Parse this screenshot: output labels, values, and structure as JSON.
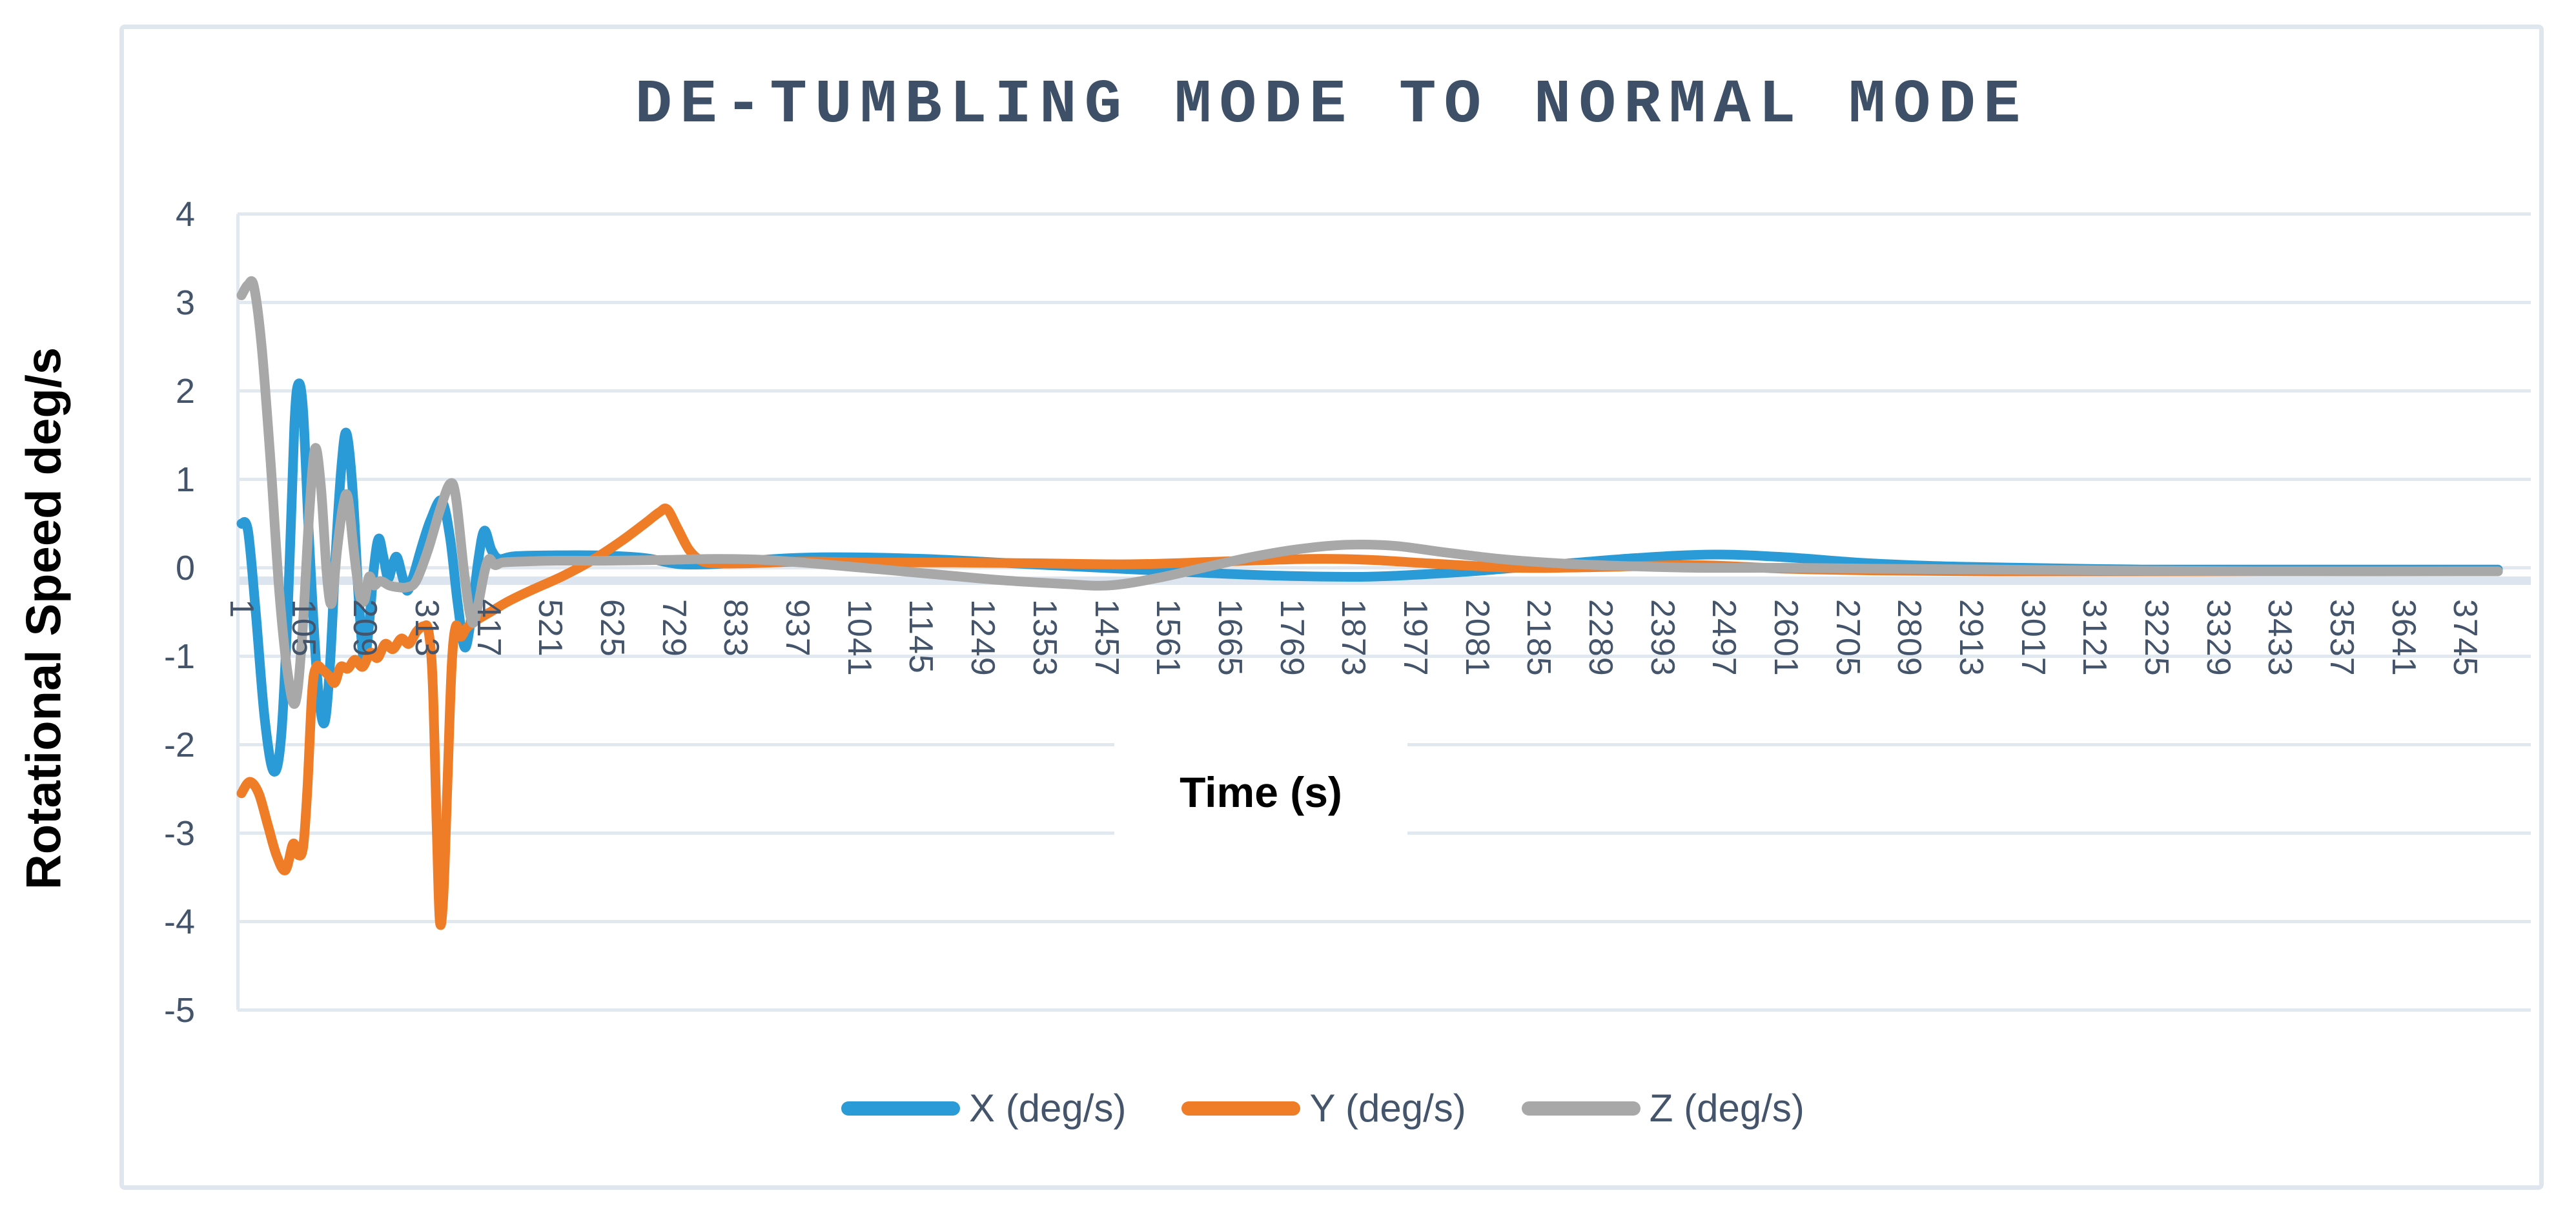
{
  "colors": {
    "background": "#ffffff",
    "frame_border": "#dfe6ee",
    "gridline": "#e2e8f0",
    "zero_axis_band": "#dce4ef",
    "axis_text": "#44546a",
    "title_text": "#3e5067",
    "axis_title_text": "#000000",
    "series_x_blue": "#2b9bd7",
    "series_y_orange": "#ef7d28",
    "series_z_gray": "#a8a8a8"
  },
  "chart_data": {
    "type": "line",
    "title": "DE-TUMBLING MODE TO NORMAL MODE",
    "xlabel": "Time (s)",
    "ylabel": "Rotational Speed deg/s",
    "ylim": [
      -5,
      4
    ],
    "ytick_step": 1,
    "y_tick_labels": [
      "4",
      "3",
      "2",
      "1",
      "0",
      "-1",
      "-2",
      "-3",
      "-4",
      "-5"
    ],
    "x_tick_labels": [
      "1",
      "105",
      "209",
      "313",
      "417",
      "521",
      "625",
      "729",
      "833",
      "937",
      "1041",
      "1145",
      "1249",
      "1353",
      "1457",
      "1561",
      "1665",
      "1769",
      "1873",
      "1977",
      "2081",
      "2185",
      "2289",
      "2393",
      "2497",
      "2601",
      "2705",
      "2809",
      "2913",
      "3017",
      "3121",
      "3225",
      "3329",
      "3433",
      "3537",
      "3641",
      "3745"
    ],
    "x_tick_start": 1,
    "x_tick_interval": 104,
    "x_range": [
      1,
      3834
    ],
    "grid": "horizontal",
    "legend_position": "bottom",
    "series": [
      {
        "name": "X (deg/s)",
        "color": "#2b9bd7",
        "points": [
          [
            1,
            0.5
          ],
          [
            12,
            0.42
          ],
          [
            25,
            -0.5
          ],
          [
            40,
            -1.7
          ],
          [
            55,
            -2.3
          ],
          [
            68,
            -1.9
          ],
          [
            80,
            -0.3
          ],
          [
            90,
            1.6
          ],
          [
            97,
            2.08
          ],
          [
            105,
            1.75
          ],
          [
            115,
            0.3
          ],
          [
            128,
            -1.2
          ],
          [
            140,
            -1.76
          ],
          [
            150,
            -1.1
          ],
          [
            160,
            0.2
          ],
          [
            170,
            1.2
          ],
          [
            178,
            1.52
          ],
          [
            188,
            0.9
          ],
          [
            198,
            -0.3
          ],
          [
            207,
            -1.05
          ],
          [
            215,
            -0.7
          ],
          [
            224,
            0.0
          ],
          [
            232,
            0.33
          ],
          [
            240,
            0.12
          ],
          [
            248,
            -0.12
          ],
          [
            256,
            0.05
          ],
          [
            263,
            0.12
          ],
          [
            272,
            -0.1
          ],
          [
            280,
            -0.26
          ],
          [
            290,
            -0.1
          ],
          [
            305,
            0.25
          ],
          [
            320,
            0.55
          ],
          [
            338,
            0.76
          ],
          [
            352,
            0.35
          ],
          [
            365,
            -0.4
          ],
          [
            377,
            -0.9
          ],
          [
            388,
            -0.55
          ],
          [
            400,
            0.1
          ],
          [
            410,
            0.42
          ],
          [
            422,
            0.2
          ],
          [
            435,
            0.1
          ],
          [
            460,
            0.13
          ],
          [
            520,
            0.14
          ],
          [
            600,
            0.14
          ],
          [
            680,
            0.11
          ],
          [
            740,
            0.04
          ],
          [
            820,
            0.05
          ],
          [
            900,
            0.1
          ],
          [
            1000,
            0.12
          ],
          [
            1150,
            0.1
          ],
          [
            1300,
            0.05
          ],
          [
            1450,
            0.0
          ],
          [
            1600,
            -0.05
          ],
          [
            1750,
            -0.09
          ],
          [
            1900,
            -0.1
          ],
          [
            2050,
            -0.05
          ],
          [
            2200,
            0.03
          ],
          [
            2350,
            0.11
          ],
          [
            2480,
            0.15
          ],
          [
            2600,
            0.12
          ],
          [
            2720,
            0.06
          ],
          [
            2850,
            0.02
          ],
          [
            3000,
            0.0
          ],
          [
            3200,
            -0.02
          ],
          [
            3400,
            -0.02
          ],
          [
            3600,
            -0.02
          ],
          [
            3800,
            -0.02
          ]
        ]
      },
      {
        "name": "Y (deg/s)",
        "color": "#ef7d28",
        "points": [
          [
            1,
            -2.55
          ],
          [
            15,
            -2.42
          ],
          [
            30,
            -2.55
          ],
          [
            45,
            -2.9
          ],
          [
            60,
            -3.25
          ],
          [
            75,
            -3.42
          ],
          [
            88,
            -3.12
          ],
          [
            97,
            -3.25
          ],
          [
            105,
            -3.15
          ],
          [
            112,
            -2.5
          ],
          [
            120,
            -1.4
          ],
          [
            127,
            -1.12
          ],
          [
            137,
            -1.15
          ],
          [
            148,
            -1.22
          ],
          [
            158,
            -1.3
          ],
          [
            168,
            -1.12
          ],
          [
            180,
            -1.14
          ],
          [
            192,
            -1.04
          ],
          [
            205,
            -1.12
          ],
          [
            218,
            -0.96
          ],
          [
            230,
            -1.02
          ],
          [
            243,
            -0.86
          ],
          [
            256,
            -0.92
          ],
          [
            270,
            -0.8
          ],
          [
            283,
            -0.86
          ],
          [
            296,
            -0.72
          ],
          [
            308,
            -0.66
          ],
          [
            316,
            -0.72
          ],
          [
            323,
            -1.3
          ],
          [
            330,
            -3.0
          ],
          [
            335,
            -4.0
          ],
          [
            341,
            -3.7
          ],
          [
            348,
            -2.4
          ],
          [
            355,
            -1.1
          ],
          [
            362,
            -0.66
          ],
          [
            370,
            -0.78
          ],
          [
            380,
            -0.68
          ],
          [
            395,
            -0.6
          ],
          [
            420,
            -0.5
          ],
          [
            450,
            -0.38
          ],
          [
            490,
            -0.25
          ],
          [
            540,
            -0.1
          ],
          [
            590,
            0.08
          ],
          [
            640,
            0.3
          ],
          [
            680,
            0.5
          ],
          [
            705,
            0.63
          ],
          [
            718,
            0.66
          ],
          [
            735,
            0.45
          ],
          [
            755,
            0.2
          ],
          [
            775,
            0.08
          ],
          [
            800,
            0.05
          ],
          [
            850,
            0.05
          ],
          [
            950,
            0.07
          ],
          [
            1050,
            0.06
          ],
          [
            1200,
            0.06
          ],
          [
            1350,
            0.05
          ],
          [
            1500,
            0.04
          ],
          [
            1650,
            0.07
          ],
          [
            1800,
            0.1
          ],
          [
            1900,
            0.09
          ],
          [
            2000,
            0.05
          ],
          [
            2150,
            0.0
          ],
          [
            2300,
            0.01
          ],
          [
            2450,
            0.03
          ],
          [
            2600,
            -0.01
          ],
          [
            2750,
            -0.03
          ],
          [
            2950,
            -0.04
          ],
          [
            3200,
            -0.04
          ],
          [
            3500,
            -0.04
          ],
          [
            3800,
            -0.04
          ]
        ]
      },
      {
        "name": "Z (deg/s)",
        "color": "#a8a8a8",
        "points": [
          [
            1,
            3.08
          ],
          [
            12,
            3.2
          ],
          [
            22,
            3.18
          ],
          [
            35,
            2.5
          ],
          [
            50,
            1.2
          ],
          [
            65,
            -0.3
          ],
          [
            80,
            -1.25
          ],
          [
            92,
            -1.52
          ],
          [
            103,
            -0.8
          ],
          [
            115,
            0.6
          ],
          [
            125,
            1.35
          ],
          [
            135,
            0.9
          ],
          [
            145,
            -0.1
          ],
          [
            153,
            -0.4
          ],
          [
            162,
            0.2
          ],
          [
            172,
            0.7
          ],
          [
            180,
            0.8
          ],
          [
            190,
            0.2
          ],
          [
            200,
            -0.3
          ],
          [
            208,
            -0.37
          ],
          [
            216,
            -0.1
          ],
          [
            224,
            -0.2
          ],
          [
            235,
            -0.15
          ],
          [
            250,
            -0.2
          ],
          [
            265,
            -0.22
          ],
          [
            280,
            -0.22
          ],
          [
            295,
            -0.15
          ],
          [
            315,
            0.2
          ],
          [
            335,
            0.65
          ],
          [
            352,
            0.95
          ],
          [
            362,
            0.8
          ],
          [
            375,
            0.0
          ],
          [
            385,
            -0.5
          ],
          [
            392,
            -0.62
          ],
          [
            400,
            -0.4
          ],
          [
            410,
            -0.05
          ],
          [
            418,
            0.1
          ],
          [
            428,
            0.03
          ],
          [
            440,
            0.06
          ],
          [
            470,
            0.07
          ],
          [
            530,
            0.08
          ],
          [
            620,
            0.08
          ],
          [
            720,
            0.09
          ],
          [
            800,
            0.1
          ],
          [
            880,
            0.09
          ],
          [
            980,
            0.04
          ],
          [
            1080,
            -0.02
          ],
          [
            1180,
            -0.08
          ],
          [
            1280,
            -0.14
          ],
          [
            1380,
            -0.18
          ],
          [
            1460,
            -0.2
          ],
          [
            1540,
            -0.12
          ],
          [
            1620,
            0.0
          ],
          [
            1700,
            0.12
          ],
          [
            1780,
            0.21
          ],
          [
            1860,
            0.26
          ],
          [
            1940,
            0.25
          ],
          [
            2020,
            0.18
          ],
          [
            2120,
            0.1
          ],
          [
            2220,
            0.05
          ],
          [
            2330,
            0.02
          ],
          [
            2450,
            0.0
          ],
          [
            2600,
            0.0
          ],
          [
            2750,
            -0.01
          ],
          [
            2950,
            -0.02
          ],
          [
            3150,
            -0.03
          ],
          [
            3400,
            -0.04
          ],
          [
            3800,
            -0.04
          ]
        ]
      }
    ]
  }
}
